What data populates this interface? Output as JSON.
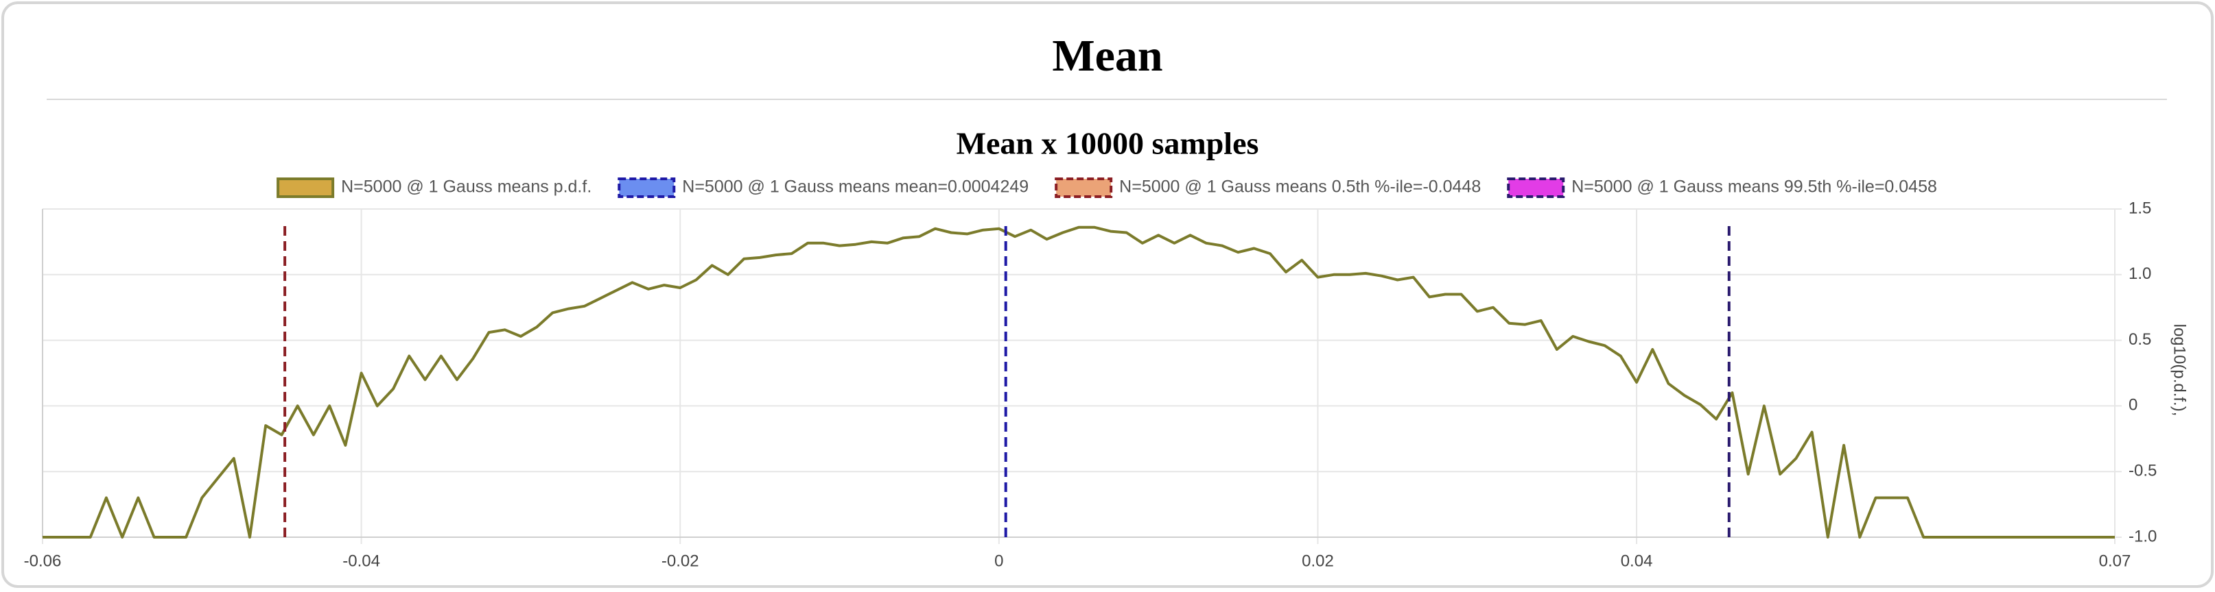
{
  "page_title": "Mean",
  "chart_data": {
    "type": "line",
    "title": "Mean x 10000 samples",
    "y_label": "log10(p.d.f.),",
    "x": [
      -0.06,
      -0.059,
      -0.058,
      -0.057,
      -0.056,
      -0.055,
      -0.054,
      -0.053,
      -0.052,
      -0.051,
      -0.05,
      -0.049,
      -0.048,
      -0.047,
      -0.046,
      -0.045,
      -0.044,
      -0.043,
      -0.042,
      -0.041,
      -0.04,
      -0.039,
      -0.038,
      -0.037,
      -0.036,
      -0.035,
      -0.034,
      -0.033,
      -0.032,
      -0.031,
      -0.03,
      -0.029,
      -0.028,
      -0.027,
      -0.026,
      -0.025,
      -0.024,
      -0.023,
      -0.022,
      -0.021,
      -0.02,
      -0.019,
      -0.018,
      -0.017,
      -0.016,
      -0.015,
      -0.014,
      -0.013,
      -0.012,
      -0.011,
      -0.01,
      -0.009,
      -0.008,
      -0.007,
      -0.006,
      -0.005,
      -0.004,
      -0.003,
      -0.002,
      -0.001,
      0,
      0.001,
      0.002,
      0.003,
      0.004,
      0.005,
      0.006,
      0.007,
      0.008,
      0.009,
      0.01,
      0.011,
      0.012,
      0.013,
      0.014,
      0.015,
      0.016,
      0.017,
      0.018,
      0.019,
      0.02,
      0.021,
      0.022,
      0.023,
      0.024,
      0.025,
      0.026,
      0.027,
      0.028,
      0.029,
      0.03,
      0.031,
      0.032,
      0.033,
      0.034,
      0.035,
      0.036,
      0.037,
      0.038,
      0.039,
      0.04,
      0.041,
      0.042,
      0.043,
      0.044,
      0.045,
      0.046,
      0.047,
      0.048,
      0.049,
      0.05,
      0.051,
      0.052,
      0.053,
      0.054,
      0.055,
      0.056,
      0.057,
      0.058,
      0.059,
      0.06,
      0.061,
      0.062,
      0.063,
      0.064,
      0.065,
      0.066,
      0.067,
      0.068,
      0.069,
      0.07
    ],
    "series": [
      {
        "name": "N=5000 @ 1 Gauss means p.d.f.",
        "color": "#7b7b2b",
        "fill": "#d4a843",
        "values": [
          -1,
          -1,
          -1,
          -1,
          -0.7,
          -1,
          -0.7,
          -1,
          -1,
          -1,
          -0.7,
          -0.55,
          -0.4,
          -1,
          -0.15,
          -0.22,
          0,
          -0.22,
          0,
          -0.3,
          0.25,
          0,
          0.13,
          0.38,
          0.2,
          0.38,
          0.2,
          0.36,
          0.56,
          0.58,
          0.53,
          0.6,
          0.71,
          0.74,
          0.76,
          0.82,
          0.88,
          0.94,
          0.89,
          0.92,
          0.9,
          0.96,
          1.07,
          1.0,
          1.12,
          1.13,
          1.15,
          1.16,
          1.24,
          1.24,
          1.22,
          1.23,
          1.25,
          1.24,
          1.28,
          1.29,
          1.35,
          1.32,
          1.31,
          1.34,
          1.35,
          1.29,
          1.34,
          1.27,
          1.32,
          1.36,
          1.36,
          1.33,
          1.32,
          1.24,
          1.3,
          1.24,
          1.3,
          1.24,
          1.22,
          1.17,
          1.2,
          1.16,
          1.02,
          1.11,
          0.98,
          1.0,
          1.0,
          1.01,
          0.99,
          0.96,
          0.98,
          0.83,
          0.85,
          0.85,
          0.72,
          0.75,
          0.63,
          0.62,
          0.65,
          0.43,
          0.53,
          0.49,
          0.46,
          0.38,
          0.18,
          0.43,
          0.17,
          0.08,
          0.01,
          -0.1,
          0.1,
          -0.52,
          0,
          -0.52,
          -0.4,
          -0.2,
          -1,
          -0.3,
          -1,
          -0.7,
          -0.7,
          -0.7,
          -1,
          -1,
          -1,
          -1,
          -1,
          -1,
          -1,
          -1,
          -1,
          -1,
          -1,
          -1,
          -1
        ]
      }
    ],
    "markers": [
      {
        "name": "N=5000 @ 1 Gauss means mean=0.0004249",
        "value": 0.0004249,
        "color": "#1f1aa6",
        "fill": "#6b8ef0"
      },
      {
        "name": "N=5000 @ 1 Gauss means 0.5th %-ile=-0.0448",
        "value": -0.0448,
        "color": "#8b1f24",
        "fill": "#eba377"
      },
      {
        "name": "N=5000 @ 1 Gauss means 99.5th %-ile=0.0458",
        "value": 0.0458,
        "color": "#2a1a6e",
        "fill": "#e23ce6"
      }
    ],
    "xlim": [
      -0.06,
      0.07
    ],
    "xticks": [
      -0.06,
      -0.04,
      -0.02,
      0,
      0.02,
      0.04,
      0.07
    ],
    "ylim": [
      -1,
      1.5
    ],
    "yticks": [
      {
        "value": -1,
        "label": "-1.0"
      },
      -0.5,
      0,
      0.5,
      {
        "value": 1,
        "label": "1.0"
      },
      1.5
    ],
    "grid": true
  }
}
